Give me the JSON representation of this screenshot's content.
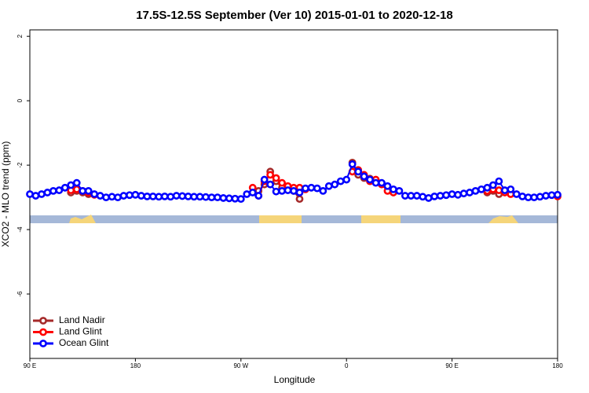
{
  "chart_data": {
    "type": "line",
    "title": "17.5S-12.5S September (Ver 10)   2015-01-01 to 2020-12-18",
    "x_label": "Longitude",
    "y_label": "XCO2 - MLO trend (ppm)",
    "xlim": [
      90,
      540
    ],
    "ylim": [
      -8,
      2.2
    ],
    "xticks": [
      {
        "value": 90,
        "label": "90 E"
      },
      180,
      {
        "value": 270,
        "label": "90 W"
      },
      {
        "value": 360,
        "label": "0"
      },
      {
        "value": 450,
        "label": "90 E"
      },
      {
        "value": 540,
        "label": "180"
      }
    ],
    "yticks": [
      2,
      0,
      -2,
      -4,
      -6
    ],
    "legend": "bottom-left",
    "x": [
      90,
      95,
      100,
      105,
      110,
      115,
      120,
      125,
      130,
      135,
      140,
      145,
      150,
      155,
      160,
      165,
      170,
      175,
      180,
      185,
      190,
      195,
      200,
      205,
      210,
      215,
      220,
      225,
      230,
      235,
      240,
      245,
      250,
      255,
      260,
      265,
      270,
      275,
      280,
      285,
      290,
      295,
      300,
      305,
      310,
      315,
      320,
      325,
      330,
      335,
      340,
      345,
      350,
      355,
      360,
      365,
      370,
      375,
      380,
      385,
      390,
      395,
      400,
      405,
      410,
      415,
      420,
      425,
      430,
      435,
      440,
      445,
      450,
      455,
      460,
      465,
      470,
      475,
      480,
      485,
      490,
      495,
      500,
      505,
      510,
      515,
      520,
      525,
      530,
      535,
      540
    ],
    "series": [
      {
        "name": "Land Nadir",
        "color": "#a52a2a",
        "values": [
          null,
          null,
          null,
          null,
          null,
          null,
          null,
          -2.85,
          -2.8,
          -2.85,
          -2.9,
          null,
          null,
          null,
          null,
          null,
          null,
          null,
          null,
          null,
          null,
          null,
          null,
          null,
          null,
          null,
          null,
          null,
          null,
          null,
          null,
          null,
          null,
          null,
          null,
          null,
          null,
          null,
          null,
          -2.8,
          -2.6,
          -2.2,
          -2.5,
          -2.7,
          -2.75,
          -2.8,
          -3.05,
          null,
          null,
          null,
          null,
          null,
          null,
          null,
          null,
          -1.92,
          -2.3,
          -2.4,
          -2.42,
          -2.5,
          null,
          null,
          null,
          null,
          null,
          null,
          null,
          null,
          null,
          null,
          null,
          null,
          null,
          null,
          null,
          null,
          null,
          null,
          -2.85,
          -2.8,
          -2.9,
          null,
          null,
          null,
          null,
          null,
          null,
          null,
          null,
          null,
          null
        ]
      },
      {
        "name": "Land Glint",
        "color": "#ff0000",
        "values": [
          null,
          null,
          null,
          null,
          null,
          null,
          null,
          -2.78,
          -2.75,
          -2.8,
          -2.85,
          -2.92,
          null,
          null,
          null,
          null,
          null,
          null,
          null,
          null,
          null,
          null,
          null,
          null,
          null,
          null,
          null,
          null,
          null,
          null,
          null,
          null,
          null,
          null,
          null,
          null,
          null,
          null,
          -2.7,
          -2.95,
          -2.5,
          -2.3,
          -2.4,
          -2.55,
          -2.65,
          -2.7,
          -2.7,
          -2.75,
          null,
          null,
          null,
          null,
          null,
          null,
          null,
          -2.2,
          -2.15,
          -2.3,
          -2.5,
          -2.45,
          -2.6,
          -2.8,
          -2.85,
          null,
          null,
          null,
          null,
          null,
          null,
          null,
          null,
          null,
          null,
          null,
          null,
          null,
          null,
          null,
          -2.8,
          -2.75,
          -2.78,
          -2.85,
          -2.9,
          null,
          null,
          null,
          null,
          null,
          null,
          null,
          -2.97
        ]
      },
      {
        "name": "Ocean Glint",
        "color": "#0000ff",
        "values": [
          -2.9,
          -2.95,
          -2.9,
          -2.85,
          -2.8,
          -2.78,
          -2.7,
          -2.62,
          -2.55,
          -2.8,
          -2.8,
          -2.9,
          -2.95,
          -3.0,
          -2.98,
          -3.0,
          -2.95,
          -2.93,
          -2.92,
          -2.95,
          -2.97,
          -2.97,
          -2.98,
          -2.97,
          -2.98,
          -2.95,
          -2.96,
          -2.97,
          -2.98,
          -2.98,
          -2.99,
          -3.0,
          -3.0,
          -3.02,
          -3.03,
          -3.04,
          -3.05,
          -2.9,
          -2.85,
          -2.95,
          -2.45,
          -2.6,
          -2.82,
          -2.8,
          -2.78,
          -2.8,
          -2.85,
          -2.72,
          -2.7,
          -2.72,
          -2.8,
          -2.65,
          -2.6,
          -2.5,
          -2.45,
          -1.97,
          -2.2,
          -2.35,
          -2.45,
          -2.55,
          -2.55,
          -2.65,
          -2.75,
          -2.8,
          -2.95,
          -2.95,
          -2.95,
          -2.98,
          -3.02,
          -2.97,
          -2.95,
          -2.93,
          -2.9,
          -2.92,
          -2.88,
          -2.85,
          -2.8,
          -2.75,
          -2.7,
          -2.62,
          -2.5,
          -2.78,
          -2.75,
          -2.9,
          -2.97,
          -3.0,
          -3.0,
          -2.98,
          -2.95,
          -2.93,
          -2.92
        ]
      }
    ]
  }
}
